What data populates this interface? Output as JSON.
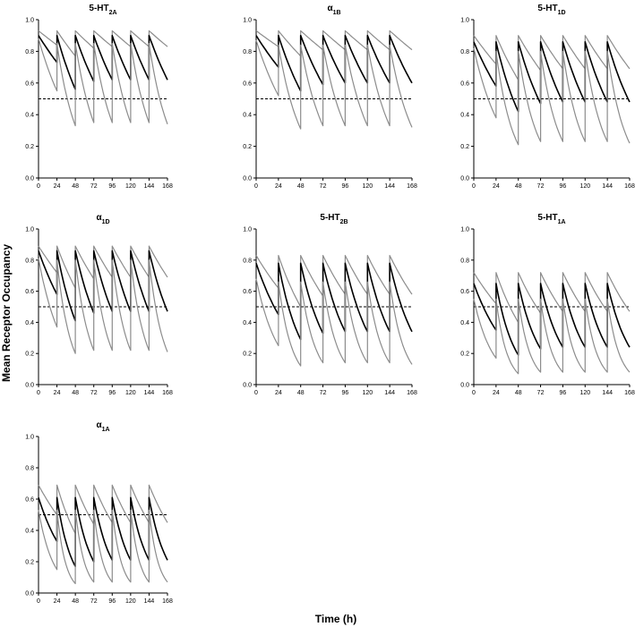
{
  "figure": {
    "xlabel": "Time (h)",
    "ylabel": "Mean Receptor Occupancy"
  },
  "chart_data": [
    {
      "type": "line",
      "title_main": "5-HT",
      "title_sub": "2A",
      "xlabel": "",
      "ylabel": "",
      "xlim": [
        0,
        168
      ],
      "ylim": [
        0,
        1.0
      ],
      "xticks": [
        "0",
        "24",
        "48",
        "72",
        "96",
        "120",
        "144",
        "168"
      ],
      "yticks": [
        "0.0",
        "0.2",
        "0.4",
        "0.6",
        "0.8",
        "1.0"
      ],
      "threshold": 0.5,
      "series": [
        {
          "role": "upper",
          "trough": [
            0.84,
            0.77,
            0.82,
            0.83,
            0.83,
            0.83,
            0.83
          ],
          "peak": [
            0.93,
            0.93,
            0.93,
            0.93,
            0.93,
            0.93,
            0.93
          ]
        },
        {
          "role": "median",
          "trough": [
            0.73,
            0.56,
            0.61,
            0.62,
            0.62,
            0.62,
            0.62
          ],
          "peak": [
            0.9,
            0.9,
            0.9,
            0.9,
            0.9,
            0.9,
            0.9
          ]
        },
        {
          "role": "lower",
          "trough": [
            0.55,
            0.33,
            0.35,
            0.35,
            0.35,
            0.35,
            0.34
          ],
          "peak": [
            0.88,
            0.85,
            0.85,
            0.85,
            0.85,
            0.85,
            0.85
          ]
        }
      ]
    },
    {
      "type": "line",
      "title_main": "α",
      "title_sub": "1B",
      "xlabel": "",
      "ylabel": "",
      "xlim": [
        0,
        168
      ],
      "ylim": [
        0,
        1.0
      ],
      "xticks": [
        "0",
        "24",
        "48",
        "72",
        "96",
        "120",
        "144",
        "168"
      ],
      "yticks": [
        "0.0",
        "0.2",
        "0.4",
        "0.6",
        "0.8",
        "1.0"
      ],
      "threshold": 0.5,
      "series": [
        {
          "role": "upper",
          "trough": [
            0.83,
            0.77,
            0.81,
            0.81,
            0.81,
            0.81,
            0.81
          ],
          "peak": [
            0.93,
            0.93,
            0.93,
            0.93,
            0.93,
            0.93,
            0.93
          ]
        },
        {
          "role": "median",
          "trough": [
            0.7,
            0.55,
            0.59,
            0.6,
            0.6,
            0.6,
            0.6
          ],
          "peak": [
            0.9,
            0.9,
            0.9,
            0.9,
            0.9,
            0.9,
            0.9
          ]
        },
        {
          "role": "lower",
          "trough": [
            0.52,
            0.31,
            0.33,
            0.33,
            0.33,
            0.33,
            0.32
          ],
          "peak": [
            0.87,
            0.84,
            0.84,
            0.84,
            0.84,
            0.84,
            0.84
          ]
        }
      ]
    },
    {
      "type": "line",
      "title_main": "5-HT",
      "title_sub": "1D",
      "xlabel": "",
      "ylabel": "",
      "xlim": [
        0,
        168
      ],
      "ylim": [
        0,
        1.0
      ],
      "xticks": [
        "0",
        "24",
        "48",
        "72",
        "96",
        "120",
        "144",
        "168"
      ],
      "yticks": [
        "0.0",
        "0.2",
        "0.4",
        "0.6",
        "0.8",
        "1.0"
      ],
      "threshold": 0.5,
      "series": [
        {
          "role": "upper",
          "trough": [
            0.72,
            0.62,
            0.68,
            0.69,
            0.69,
            0.69,
            0.69
          ],
          "peak": [
            0.9,
            0.9,
            0.9,
            0.9,
            0.9,
            0.9,
            0.9
          ]
        },
        {
          "role": "median",
          "trough": [
            0.58,
            0.42,
            0.47,
            0.48,
            0.48,
            0.48,
            0.48
          ],
          "peak": [
            0.86,
            0.86,
            0.86,
            0.86,
            0.86,
            0.86,
            0.86
          ]
        },
        {
          "role": "lower",
          "trough": [
            0.38,
            0.21,
            0.23,
            0.23,
            0.23,
            0.23,
            0.22
          ],
          "peak": [
            0.82,
            0.8,
            0.8,
            0.8,
            0.8,
            0.8,
            0.8
          ]
        }
      ]
    },
    {
      "type": "line",
      "title_main": "α",
      "title_sub": "1D",
      "xlabel": "",
      "ylabel": "",
      "xlim": [
        0,
        168
      ],
      "ylim": [
        0,
        1.0
      ],
      "xticks": [
        "0",
        "24",
        "48",
        "72",
        "96",
        "120",
        "144",
        "168"
      ],
      "yticks": [
        "0.0",
        "0.2",
        "0.4",
        "0.6",
        "0.8",
        "1.0"
      ],
      "threshold": 0.5,
      "series": [
        {
          "role": "upper",
          "trough": [
            0.72,
            0.62,
            0.68,
            0.69,
            0.69,
            0.69,
            0.69
          ],
          "peak": [
            0.89,
            0.89,
            0.89,
            0.89,
            0.89,
            0.89,
            0.89
          ]
        },
        {
          "role": "median",
          "trough": [
            0.58,
            0.41,
            0.46,
            0.47,
            0.47,
            0.47,
            0.47
          ],
          "peak": [
            0.86,
            0.86,
            0.86,
            0.86,
            0.86,
            0.86,
            0.86
          ]
        },
        {
          "role": "lower",
          "trough": [
            0.37,
            0.2,
            0.22,
            0.22,
            0.22,
            0.22,
            0.21
          ],
          "peak": [
            0.81,
            0.8,
            0.8,
            0.8,
            0.8,
            0.8,
            0.8
          ]
        }
      ]
    },
    {
      "type": "line",
      "title_main": "5-HT",
      "title_sub": "2B",
      "xlabel": "",
      "ylabel": "",
      "xlim": [
        0,
        168
      ],
      "ylim": [
        0,
        1.0
      ],
      "xticks": [
        "0",
        "24",
        "48",
        "72",
        "96",
        "120",
        "144",
        "168"
      ],
      "yticks": [
        "0.0",
        "0.2",
        "0.4",
        "0.6",
        "0.8",
        "1.0"
      ],
      "threshold": 0.5,
      "series": [
        {
          "role": "upper",
          "trough": [
            0.62,
            0.5,
            0.57,
            0.58,
            0.58,
            0.58,
            0.58
          ],
          "peak": [
            0.83,
            0.83,
            0.83,
            0.83,
            0.83,
            0.83,
            0.83
          ]
        },
        {
          "role": "median",
          "trough": [
            0.45,
            0.29,
            0.33,
            0.34,
            0.34,
            0.34,
            0.34
          ],
          "peak": [
            0.78,
            0.78,
            0.78,
            0.78,
            0.78,
            0.78,
            0.78
          ]
        },
        {
          "role": "lower",
          "trough": [
            0.25,
            0.12,
            0.14,
            0.14,
            0.14,
            0.14,
            0.13
          ],
          "peak": [
            0.68,
            0.66,
            0.66,
            0.66,
            0.66,
            0.66,
            0.66
          ]
        }
      ]
    },
    {
      "type": "line",
      "title_main": "5-HT",
      "title_sub": "1A",
      "xlabel": "",
      "ylabel": "",
      "xlim": [
        0,
        168
      ],
      "ylim": [
        0,
        1.0
      ],
      "xticks": [
        "0",
        "24",
        "48",
        "72",
        "96",
        "120",
        "144",
        "168"
      ],
      "yticks": [
        "0.0",
        "0.2",
        "0.4",
        "0.6",
        "0.8",
        "1.0"
      ],
      "threshold": 0.5,
      "series": [
        {
          "role": "upper",
          "trough": [
            0.52,
            0.4,
            0.46,
            0.47,
            0.47,
            0.47,
            0.47
          ],
          "peak": [
            0.72,
            0.72,
            0.72,
            0.72,
            0.72,
            0.72,
            0.72
          ]
        },
        {
          "role": "median",
          "trough": [
            0.35,
            0.19,
            0.23,
            0.24,
            0.24,
            0.24,
            0.24
          ],
          "peak": [
            0.65,
            0.65,
            0.65,
            0.65,
            0.65,
            0.65,
            0.65
          ]
        },
        {
          "role": "lower",
          "trough": [
            0.17,
            0.07,
            0.08,
            0.08,
            0.08,
            0.08,
            0.08
          ],
          "peak": [
            0.55,
            0.55,
            0.55,
            0.55,
            0.55,
            0.55,
            0.55
          ]
        }
      ]
    },
    {
      "type": "line",
      "title_main": "α",
      "title_sub": "1A",
      "xlabel": "",
      "ylabel": "",
      "xlim": [
        0,
        168
      ],
      "ylim": [
        0,
        1.0
      ],
      "xticks": [
        "0",
        "24",
        "48",
        "72",
        "96",
        "120",
        "144",
        "168"
      ],
      "yticks": [
        "0.0",
        "0.2",
        "0.4",
        "0.6",
        "0.8",
        "1.0"
      ],
      "threshold": 0.5,
      "series": [
        {
          "role": "upper",
          "trough": [
            0.5,
            0.38,
            0.44,
            0.45,
            0.45,
            0.45,
            0.45
          ],
          "peak": [
            0.69,
            0.69,
            0.69,
            0.69,
            0.69,
            0.69,
            0.69
          ]
        },
        {
          "role": "median",
          "trough": [
            0.33,
            0.17,
            0.2,
            0.21,
            0.21,
            0.21,
            0.21
          ],
          "peak": [
            0.61,
            0.61,
            0.61,
            0.61,
            0.61,
            0.61,
            0.61
          ]
        },
        {
          "role": "lower",
          "trough": [
            0.15,
            0.06,
            0.07,
            0.07,
            0.07,
            0.07,
            0.07
          ],
          "peak": [
            0.53,
            0.53,
            0.53,
            0.53,
            0.53,
            0.53,
            0.53
          ]
        }
      ]
    }
  ],
  "colors": {
    "median": "#000000",
    "percentile": "#8c8c8c",
    "threshold": "#000000",
    "axis": "#000000"
  }
}
